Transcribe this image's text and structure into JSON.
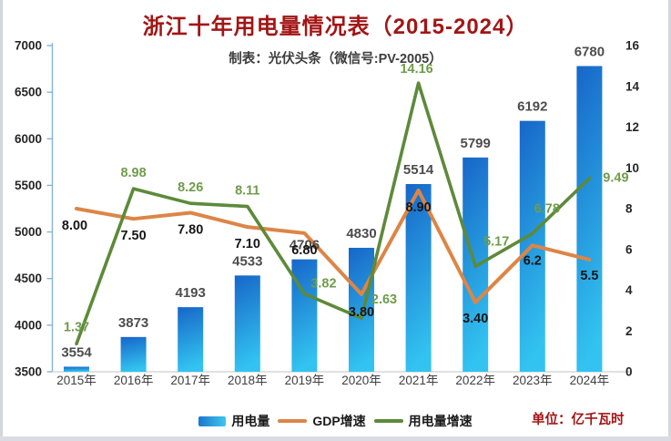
{
  "title": {
    "text": "浙江十年用电量情况表（2015-2024）",
    "color": "#a31515"
  },
  "subtitle": {
    "text": "制表：光伏头条（微信号:PV-2005）"
  },
  "unit_label": {
    "text": "单位：亿千瓦时",
    "color": "#a31515"
  },
  "legend": [
    {
      "label": "用电量",
      "type": "bar",
      "colors": [
        "#1a77cc",
        "#3fc6f0"
      ]
    },
    {
      "label": "GDP增速",
      "type": "line",
      "colors": [
        "#dd8546"
      ]
    },
    {
      "label": "用电量增速",
      "type": "line",
      "colors": [
        "#5d8a3a"
      ]
    }
  ],
  "chart_data": {
    "type": "bar+line",
    "categories": [
      "2015年",
      "2016年",
      "2017年",
      "2018年",
      "2019年",
      "2020年",
      "2021年",
      "2022年",
      "2023年",
      "2024年"
    ],
    "series": [
      {
        "name": "用电量",
        "chart": "bar",
        "axis": "left",
        "values": [
          3554,
          3873,
          4193,
          4533,
          4706,
          4830,
          5514,
          5799,
          6192,
          6780
        ],
        "labels": [
          "3554",
          "3873",
          "4193",
          "4533",
          "4706",
          "4830",
          "5514",
          "5799",
          "6192",
          "6780"
        ],
        "bar_gradient": [
          "#1766c8",
          "#32c3f0"
        ],
        "label_color": "#4d4d4d"
      },
      {
        "name": "GDP增速",
        "chart": "line",
        "axis": "right",
        "color": "#dd8546",
        "values": [
          8.0,
          7.5,
          7.8,
          7.1,
          6.8,
          3.8,
          8.9,
          3.4,
          6.2,
          5.5
        ],
        "labels": [
          "8.00",
          "7.50",
          "7.80",
          "7.10",
          "6.80",
          "3.80",
          "8.90",
          "3.40",
          "6.2",
          "5.5"
        ],
        "label_color": "#161616",
        "label_offsets": [
          [
            -2,
            18
          ],
          [
            0,
            18
          ],
          [
            0,
            18
          ],
          [
            0,
            18
          ],
          [
            0,
            18
          ],
          [
            0,
            19
          ],
          [
            0,
            18
          ],
          [
            0,
            17
          ],
          [
            0,
            16
          ],
          [
            0,
            17
          ]
        ]
      },
      {
        "name": "用电量增速",
        "chart": "line",
        "axis": "right",
        "color": "#5d8a3a",
        "values": [
          1.37,
          8.98,
          8.26,
          8.11,
          3.82,
          2.63,
          14.16,
          5.17,
          6.78,
          9.49
        ],
        "labels": [
          "1.37",
          "8.98",
          "8.26",
          "8.11",
          "3.82",
          "2.63",
          "14.16",
          "5.17",
          "6.78",
          "9.49"
        ],
        "label_color": "#6f9c4a",
        "label_offsets": [
          [
            0,
            -19
          ],
          [
            0,
            -18
          ],
          [
            0,
            -18
          ],
          [
            0,
            -18
          ],
          [
            21,
            -12
          ],
          [
            25,
            -21
          ],
          [
            -2,
            -16
          ],
          [
            23,
            -28
          ],
          [
            16,
            -28
          ],
          [
            29,
            -1
          ]
        ]
      }
    ],
    "left_axis": {
      "min": 3500,
      "max": 7000,
      "step": 500,
      "color": "#86b2dc",
      "label_color": "#262626"
    },
    "right_axis": {
      "min": 0,
      "max": 16,
      "step": 2,
      "label_color": "#262626"
    },
    "x_axis": {
      "line_color": "#cfcfcf",
      "label_color": "#3f3f3f"
    },
    "grid": false,
    "legend_position": "bottom"
  }
}
